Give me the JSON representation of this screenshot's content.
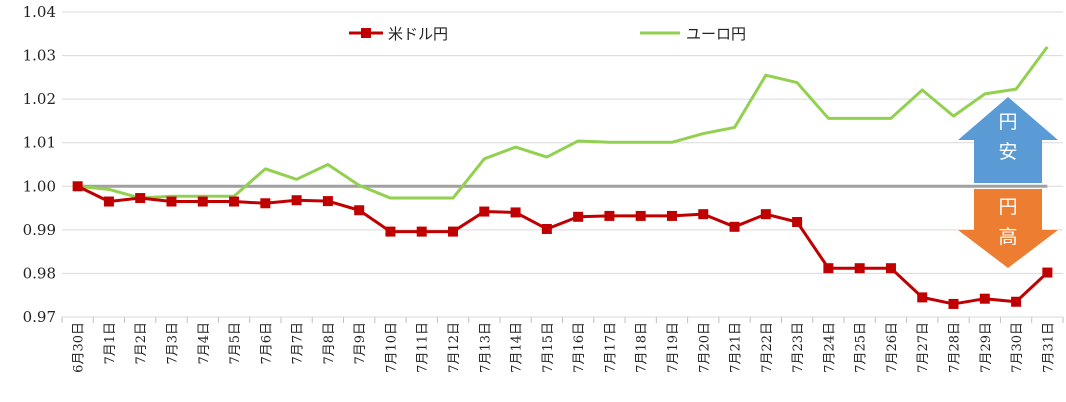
{
  "chart_data": {
    "type": "line",
    "title": "",
    "xlabel": "",
    "ylabel": "",
    "ylim": [
      0.97,
      1.04
    ],
    "yticks": [
      "0.97",
      "0.98",
      "0.99",
      "1.00",
      "1.01",
      "1.02",
      "1.03",
      "1.04"
    ],
    "grid": "horizontal",
    "legend_position": "top",
    "categories": [
      "6月30日",
      "7月1日",
      "7月2日",
      "7月3日",
      "7月4日",
      "7月5日",
      "7月6日",
      "7月7日",
      "7月8日",
      "7月9日",
      "7月10日",
      "7月11日",
      "7月12日",
      "7月13日",
      "7月14日",
      "7月15日",
      "7月16日",
      "7月17日",
      "7月18日",
      "7月19日",
      "7月20日",
      "7月21日",
      "7月22日",
      "7月23日",
      "7月24日",
      "7月25日",
      "7月26日",
      "7月27日",
      "7月28日",
      "7月29日",
      "7月30日",
      "7月31日"
    ],
    "series": [
      {
        "name": "米ドル円",
        "color": "#c00000",
        "marker": "square",
        "values": [
          1.0,
          0.9965,
          0.9973,
          0.9965,
          0.9965,
          0.9965,
          0.9961,
          0.9968,
          0.9966,
          0.9945,
          0.9896,
          0.9896,
          0.9896,
          0.9942,
          0.994,
          0.9902,
          0.993,
          0.9932,
          0.9932,
          0.9932,
          0.9936,
          0.9907,
          0.9936,
          0.9918,
          0.9812,
          0.9812,
          0.9812,
          0.9745,
          0.973,
          0.9742,
          0.9735,
          0.9802
        ]
      },
      {
        "name": "ユーロ円",
        "color": "#92d050",
        "marker": "none",
        "values": [
          1.0,
          0.9993,
          0.9973,
          0.9977,
          0.9977,
          0.9977,
          1.004,
          1.0016,
          1.005,
          1.0002,
          0.9973,
          0.9973,
          0.9973,
          1.0063,
          1.009,
          1.0067,
          1.0104,
          1.0101,
          1.0101,
          1.0101,
          1.0121,
          1.0135,
          1.0255,
          1.0238,
          1.0156,
          1.0156,
          1.0156,
          1.0221,
          1.0161,
          1.0212,
          1.0223,
          1.032
        ]
      }
    ],
    "reference_line": {
      "value": 1.0,
      "color": "#a0a0a0"
    }
  },
  "annotations": {
    "up": {
      "chars": [
        "円",
        "安"
      ],
      "color": "#5b9bd5"
    },
    "down": {
      "chars": [
        "円",
        "高"
      ],
      "color": "#ed7d31"
    }
  }
}
